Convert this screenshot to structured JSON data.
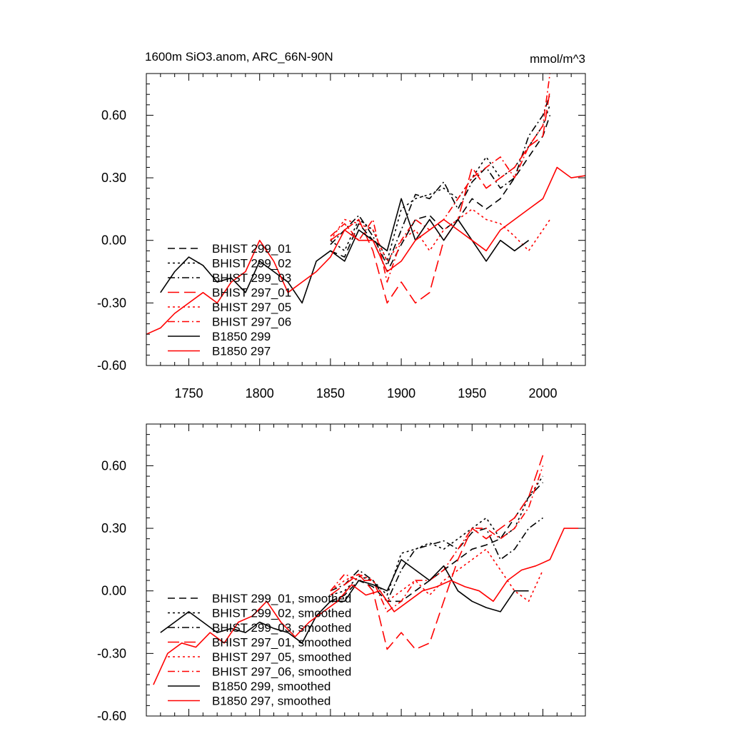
{
  "chart_data": [
    {
      "type": "line",
      "title": "1600m SiO3.anom, ARC_66N-90N",
      "units": "mmol/m^3",
      "xlim": [
        1720,
        2030
      ],
      "ylim": [
        -0.6,
        0.8
      ],
      "yticks": [
        -0.6,
        -0.3,
        0.0,
        0.3,
        0.6
      ],
      "ytick_labels": [
        "-0.60",
        "-0.30",
        "0.00",
        "0.30",
        "0.60"
      ],
      "xticks": [
        1750,
        1800,
        1850,
        1900,
        1950,
        2000
      ],
      "xtick_labels": [
        "1750",
        "1800",
        "1850",
        "1900",
        "1950",
        "2000"
      ],
      "legend_position": "lower-left",
      "series": [
        {
          "name": "BHIST 299_01",
          "color": "#000000",
          "dash": "dashed",
          "x": [
            1850,
            1860,
            1870,
            1880,
            1890,
            1900,
            1910,
            1920,
            1930,
            1940,
            1950,
            1960,
            1970,
            1980,
            1990,
            2000,
            2005
          ],
          "y": [
            -0.05,
            -0.08,
            0.08,
            0.0,
            -0.15,
            -0.02,
            0.1,
            0.12,
            0.05,
            0.1,
            0.2,
            0.15,
            0.2,
            0.3,
            0.4,
            0.5,
            0.6
          ]
        },
        {
          "name": "BHIST 299_02",
          "color": "#000000",
          "dash": "dotted",
          "x": [
            1850,
            1860,
            1870,
            1880,
            1890,
            1900,
            1910,
            1920,
            1930,
            1940,
            1950,
            1960,
            1970,
            1980,
            1990,
            2000,
            2005
          ],
          "y": [
            0.0,
            -0.05,
            0.1,
            0.05,
            -0.1,
            0.15,
            0.2,
            0.22,
            0.25,
            0.2,
            0.3,
            0.4,
            0.3,
            0.35,
            0.45,
            0.55,
            0.65
          ]
        },
        {
          "name": "BHIST 299_03",
          "color": "#000000",
          "dash": "dashdot",
          "x": [
            1850,
            1860,
            1870,
            1880,
            1890,
            1900,
            1910,
            1920,
            1930,
            1940,
            1950,
            1960,
            1970,
            1980,
            1990,
            2000,
            2005
          ],
          "y": [
            -0.02,
            0.05,
            0.12,
            0.02,
            -0.12,
            0.05,
            0.22,
            0.2,
            0.28,
            0.15,
            0.28,
            0.35,
            0.25,
            0.3,
            0.5,
            0.6,
            0.7
          ]
        },
        {
          "name": "BHIST 297_01",
          "color": "#ff0000",
          "dash": "longdash",
          "x": [
            1850,
            1860,
            1870,
            1880,
            1890,
            1900,
            1910,
            1920,
            1930,
            1940,
            1950,
            1960,
            1970,
            1980,
            1990,
            2000,
            2005
          ],
          "y": [
            0.0,
            0.05,
            0.1,
            -0.05,
            -0.3,
            -0.2,
            -0.3,
            -0.25,
            0.0,
            0.1,
            0.35,
            0.25,
            0.3,
            0.35,
            0.45,
            0.5,
            0.72
          ]
        },
        {
          "name": "BHIST 297_05",
          "color": "#ff0000",
          "dash": "dotted",
          "x": [
            1850,
            1860,
            1870,
            1880,
            1890,
            1900,
            1910,
            1920,
            1930,
            1940,
            1950,
            1960,
            1970,
            1980,
            1990,
            2000,
            2005
          ],
          "y": [
            0.0,
            0.1,
            0.08,
            0.05,
            -0.1,
            0.0,
            0.05,
            -0.05,
            0.05,
            0.1,
            0.15,
            0.1,
            0.08,
            0.02,
            -0.05,
            0.05,
            0.1
          ]
        },
        {
          "name": "BHIST 297_06",
          "color": "#ff0000",
          "dash": "dashdot",
          "x": [
            1850,
            1860,
            1870,
            1880,
            1890,
            1900,
            1910,
            1920,
            1930,
            1940,
            1950,
            1960,
            1970,
            1980,
            1990,
            2000,
            2005
          ],
          "y": [
            0.02,
            0.08,
            0.0,
            0.1,
            -0.2,
            0.0,
            0.1,
            0.05,
            0.1,
            0.2,
            0.3,
            0.35,
            0.4,
            0.3,
            0.45,
            0.55,
            0.8
          ]
        },
        {
          "name": "B1850 299",
          "color": "#000000",
          "dash": "solid",
          "x": [
            1730,
            1740,
            1750,
            1760,
            1770,
            1780,
            1790,
            1800,
            1810,
            1820,
            1830,
            1840,
            1850,
            1860,
            1870,
            1880,
            1890,
            1900,
            1910,
            1920,
            1930,
            1940,
            1950,
            1960,
            1970,
            1980,
            1990
          ],
          "y": [
            -0.25,
            -0.15,
            -0.08,
            -0.12,
            -0.2,
            -0.18,
            -0.25,
            -0.1,
            -0.15,
            -0.2,
            -0.3,
            -0.1,
            -0.05,
            -0.1,
            0.05,
            0.0,
            -0.05,
            0.2,
            0.0,
            0.1,
            0.0,
            0.1,
            0.0,
            -0.1,
            0.0,
            -0.05,
            0.0
          ]
        },
        {
          "name": "B1850 297",
          "color": "#ff0000",
          "dash": "solid",
          "x": [
            1720,
            1730,
            1740,
            1750,
            1760,
            1770,
            1780,
            1790,
            1800,
            1810,
            1820,
            1830,
            1840,
            1850,
            1860,
            1870,
            1880,
            1890,
            1900,
            1910,
            1920,
            1930,
            1940,
            1950,
            1960,
            1970,
            1980,
            1990,
            2000,
            2010,
            2020,
            2030
          ],
          "y": [
            -0.45,
            -0.42,
            -0.35,
            -0.3,
            -0.25,
            -0.3,
            -0.2,
            -0.15,
            0.0,
            -0.1,
            -0.25,
            -0.2,
            -0.15,
            -0.08,
            0.05,
            0.0,
            0.0,
            -0.15,
            -0.1,
            0.0,
            0.05,
            0.1,
            0.05,
            0.0,
            -0.05,
            0.05,
            0.1,
            0.15,
            0.2,
            0.35,
            0.3,
            0.31
          ]
        }
      ]
    },
    {
      "type": "line",
      "title": "",
      "units": "",
      "xlim": [
        1720,
        2030
      ],
      "ylim": [
        -0.6,
        0.8
      ],
      "yticks": [
        -0.6,
        -0.3,
        0.0,
        0.3,
        0.6
      ],
      "ytick_labels": [
        "-0.60",
        "-0.30",
        "0.00",
        "0.30",
        "0.60"
      ],
      "xticks": [
        1750,
        1800,
        1850,
        1900,
        1950,
        2000
      ],
      "xtick_labels": [],
      "legend_position": "lower-left",
      "series": [
        {
          "name": "BHIST 299_01, smoothed",
          "color": "#000000",
          "dash": "dashed",
          "x": [
            1850,
            1860,
            1870,
            1880,
            1890,
            1900,
            1910,
            1920,
            1930,
            1940,
            1950,
            1960,
            1970,
            1980,
            1990,
            2000
          ],
          "y": [
            -0.05,
            -0.02,
            0.05,
            0.02,
            -0.05,
            -0.05,
            0.0,
            0.05,
            0.1,
            0.15,
            0.2,
            0.22,
            0.25,
            0.35,
            0.45,
            0.52
          ]
        },
        {
          "name": "BHIST 299_02, smoothed",
          "color": "#000000",
          "dash": "dotted",
          "x": [
            1850,
            1860,
            1870,
            1880,
            1890,
            1900,
            1910,
            1920,
            1930,
            1940,
            1950,
            1960,
            1970,
            1980,
            1990,
            2000
          ],
          "y": [
            -0.02,
            0.0,
            0.07,
            0.05,
            -0.02,
            0.18,
            0.2,
            0.23,
            0.2,
            0.25,
            0.3,
            0.35,
            0.25,
            0.3,
            0.45,
            0.55
          ]
        },
        {
          "name": "BHIST 299_03, smoothed",
          "color": "#000000",
          "dash": "dashdot",
          "x": [
            1850,
            1860,
            1870,
            1880,
            1890,
            1900,
            1910,
            1920,
            1930,
            1940,
            1950,
            1960,
            1970,
            1980,
            1990,
            2000
          ],
          "y": [
            0.0,
            0.03,
            0.1,
            0.05,
            -0.05,
            0.1,
            0.2,
            0.22,
            0.24,
            0.2,
            0.28,
            0.3,
            0.15,
            0.2,
            0.3,
            0.35
          ]
        },
        {
          "name": "BHIST 297_01, smoothed",
          "color": "#ff0000",
          "dash": "longdash",
          "x": [
            1850,
            1860,
            1870,
            1880,
            1890,
            1900,
            1910,
            1920,
            1930,
            1940,
            1950,
            1960,
            1970,
            1980,
            1990,
            2000
          ],
          "y": [
            -0.02,
            0.03,
            0.08,
            0.0,
            -0.28,
            -0.2,
            -0.28,
            -0.25,
            -0.05,
            0.15,
            0.3,
            0.25,
            0.3,
            0.35,
            0.45,
            0.65
          ]
        },
        {
          "name": "BHIST 297_05, smoothed",
          "color": "#ff0000",
          "dash": "dotted",
          "x": [
            1850,
            1860,
            1870,
            1880,
            1890,
            1900,
            1910,
            1920,
            1930,
            1940,
            1950,
            1960,
            1970,
            1980,
            1990,
            2000
          ],
          "y": [
            0.0,
            0.05,
            0.08,
            0.05,
            -0.05,
            0.0,
            0.05,
            -0.02,
            0.05,
            0.1,
            0.15,
            0.2,
            0.1,
            0.0,
            -0.05,
            0.1
          ]
        },
        {
          "name": "BHIST 297_06, smoothed",
          "color": "#ff0000",
          "dash": "dashdot",
          "x": [
            1850,
            1860,
            1870,
            1880,
            1890,
            1900,
            1910,
            1920,
            1930,
            1940,
            1950,
            1960,
            1970,
            1980,
            1990,
            2000
          ],
          "y": [
            0.0,
            0.08,
            0.05,
            0.05,
            -0.1,
            -0.05,
            0.05,
            0.05,
            0.1,
            0.2,
            0.3,
            0.3,
            0.25,
            0.3,
            0.4,
            0.6
          ]
        },
        {
          "name": "B1850 299, smoothed",
          "color": "#000000",
          "dash": "solid",
          "x": [
            1730,
            1740,
            1750,
            1760,
            1770,
            1780,
            1790,
            1800,
            1810,
            1820,
            1830,
            1840,
            1850,
            1860,
            1870,
            1880,
            1890,
            1900,
            1910,
            1920,
            1930,
            1940,
            1950,
            1960,
            1970,
            1980,
            1990
          ],
          "y": [
            -0.2,
            -0.15,
            -0.1,
            -0.15,
            -0.2,
            -0.18,
            -0.2,
            -0.15,
            -0.18,
            -0.2,
            -0.25,
            -0.12,
            -0.05,
            -0.05,
            0.05,
            0.03,
            0.0,
            0.15,
            0.1,
            0.05,
            0.12,
            0.0,
            -0.05,
            -0.08,
            -0.1,
            0.0,
            0.0
          ]
        },
        {
          "name": "B1850 297, smoothed",
          "color": "#ff0000",
          "dash": "solid",
          "x": [
            1725,
            1735,
            1745,
            1755,
            1765,
            1775,
            1785,
            1795,
            1805,
            1815,
            1825,
            1835,
            1845,
            1855,
            1865,
            1875,
            1885,
            1895,
            1905,
            1915,
            1925,
            1935,
            1945,
            1955,
            1965,
            1975,
            1985,
            1995,
            2005,
            2015,
            2025
          ],
          "y": [
            -0.45,
            -0.3,
            -0.25,
            -0.27,
            -0.2,
            -0.25,
            -0.15,
            -0.12,
            -0.05,
            -0.15,
            -0.22,
            -0.15,
            -0.1,
            -0.05,
            0.03,
            -0.02,
            0.0,
            -0.1,
            -0.05,
            0.0,
            0.02,
            0.05,
            0.02,
            0.0,
            -0.05,
            0.05,
            0.1,
            0.12,
            0.15,
            0.3,
            0.3
          ]
        }
      ]
    }
  ]
}
